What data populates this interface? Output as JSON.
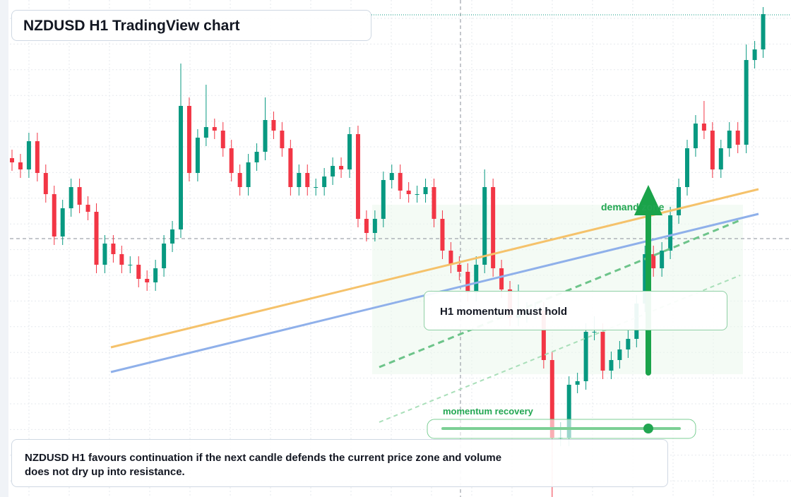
{
  "title": "NZDUSD H1 TradingView chart",
  "note": "NZDUSD H1 favours continuation if the next candle defends the current price zone and volume does not dry up into resistance.",
  "annotations": {
    "hold": "H1 momentum must hold",
    "demand": "demand zone",
    "recovery": "momentum recovery"
  },
  "chart_data": {
    "type": "candlestick",
    "ylim": [
      0,
      704
    ],
    "up_color": "#089981",
    "down_color": "#f23645",
    "candles": [
      [
        480,
        492,
        462,
        474
      ],
      [
        474,
        486,
        452,
        464
      ],
      [
        464,
        516,
        452,
        504
      ],
      [
        504,
        516,
        447,
        459
      ],
      [
        459,
        471,
        417,
        429
      ],
      [
        429,
        441,
        357,
        369
      ],
      [
        369,
        421,
        357,
        409
      ],
      [
        409,
        451,
        397,
        439
      ],
      [
        439,
        451,
        402,
        414
      ],
      [
        414,
        426,
        392,
        404
      ],
      [
        404,
        416,
        317,
        329
      ],
      [
        329,
        371,
        317,
        359
      ],
      [
        359,
        371,
        332,
        344
      ],
      [
        344,
        356,
        317,
        329
      ],
      [
        329,
        341,
        317,
        329
      ],
      [
        329,
        341,
        297,
        309
      ],
      [
        309,
        321,
        292,
        304
      ],
      [
        304,
        336,
        292,
        324
      ],
      [
        324,
        371,
        312,
        359
      ],
      [
        359,
        391,
        347,
        379
      ],
      [
        379,
        614,
        367,
        554
      ],
      [
        554,
        566,
        447,
        459
      ],
      [
        459,
        521,
        447,
        509
      ],
      [
        509,
        584,
        497,
        524
      ],
      [
        524,
        536,
        507,
        519
      ],
      [
        519,
        531,
        482,
        494
      ],
      [
        494,
        506,
        447,
        459
      ],
      [
        459,
        471,
        427,
        439
      ],
      [
        439,
        486,
        427,
        474
      ],
      [
        474,
        501,
        462,
        489
      ],
      [
        489,
        566,
        477,
        534
      ],
      [
        534,
        546,
        507,
        519
      ],
      [
        519,
        531,
        482,
        494
      ],
      [
        494,
        506,
        427,
        439
      ],
      [
        439,
        471,
        427,
        459
      ],
      [
        459,
        471,
        427,
        439
      ],
      [
        439,
        451,
        427,
        439
      ],
      [
        439,
        466,
        427,
        454
      ],
      [
        454,
        481,
        442,
        469
      ],
      [
        469,
        481,
        452,
        464
      ],
      [
        464,
        524,
        452,
        514
      ],
      [
        514,
        526,
        382,
        394
      ],
      [
        394,
        406,
        362,
        374
      ],
      [
        374,
        406,
        362,
        394
      ],
      [
        394,
        461,
        382,
        449
      ],
      [
        449,
        471,
        437,
        459
      ],
      [
        459,
        471,
        422,
        434
      ],
      [
        434,
        446,
        417,
        429
      ],
      [
        429,
        441,
        417,
        429
      ],
      [
        429,
        451,
        417,
        439
      ],
      [
        439,
        451,
        382,
        394
      ],
      [
        394,
        406,
        337,
        349
      ],
      [
        349,
        361,
        317,
        329
      ],
      [
        329,
        341,
        307,
        319
      ],
      [
        319,
        331,
        277,
        289
      ],
      [
        289,
        341,
        277,
        329
      ],
      [
        329,
        464,
        317,
        439
      ],
      [
        439,
        451,
        312,
        324
      ],
      [
        324,
        336,
        282,
        294
      ],
      [
        294,
        306,
        242,
        254
      ],
      [
        254,
        301,
        242,
        259
      ],
      [
        259,
        276,
        247,
        264
      ],
      [
        264,
        276,
        252,
        264
      ],
      [
        264,
        276,
        182,
        194
      ],
      [
        194,
        206,
        0,
        84
      ],
      [
        84,
        106,
        72,
        84
      ],
      [
        84,
        171,
        72,
        159
      ],
      [
        159,
        176,
        147,
        164
      ],
      [
        164,
        246,
        152,
        234
      ],
      [
        234,
        256,
        222,
        234
      ],
      [
        234,
        246,
        167,
        179
      ],
      [
        179,
        206,
        167,
        194
      ],
      [
        194,
        221,
        182,
        209
      ],
      [
        209,
        236,
        197,
        224
      ],
      [
        224,
        286,
        212,
        274
      ],
      [
        274,
        356,
        262,
        344
      ],
      [
        344,
        356,
        312,
        324
      ],
      [
        324,
        361,
        312,
        349
      ],
      [
        349,
        411,
        337,
        399
      ],
      [
        399,
        451,
        387,
        439
      ],
      [
        439,
        506,
        427,
        494
      ],
      [
        494,
        541,
        482,
        529
      ],
      [
        529,
        561,
        507,
        519
      ],
      [
        519,
        531,
        452,
        464
      ],
      [
        464,
        506,
        452,
        494
      ],
      [
        494,
        531,
        482,
        519
      ],
      [
        519,
        531,
        487,
        499
      ],
      [
        499,
        641,
        487,
        619
      ],
      [
        619,
        646,
        607,
        634
      ],
      [
        634,
        694,
        622,
        684
      ]
    ]
  }
}
